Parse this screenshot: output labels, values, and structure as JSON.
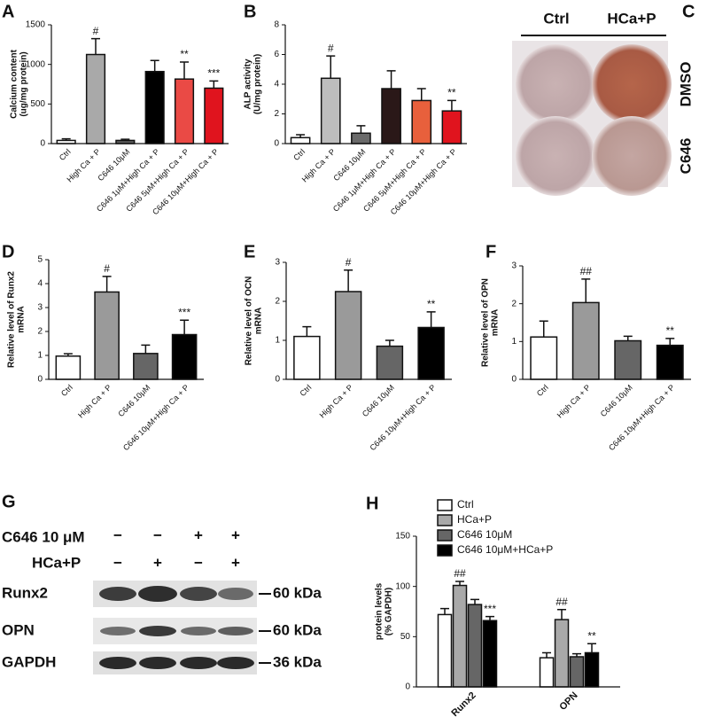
{
  "chart_data": [
    {
      "panel": "A",
      "type": "bar",
      "ylabel": [
        "Calcium content",
        "(ug/mg protein)"
      ],
      "categories": [
        "Ctrl",
        "High Ca + P",
        "C646 10μM",
        "C646 1μM+High Ca + P",
        "C646 5μM+High Ca + P",
        "C646 10μM+High Ca + P"
      ],
      "values": [
        40,
        1125,
        40,
        910,
        815,
        700
      ],
      "errors": [
        20,
        200,
        15,
        140,
        215,
        90
      ],
      "annotations": [
        null,
        "#",
        null,
        null,
        "**",
        "***"
      ],
      "colors": [
        "#ffffff",
        "#a9a9a9",
        "#5c5c5c",
        "#000000",
        "#ea4a45",
        "#e0141e"
      ],
      "ylim": [
        0,
        1500
      ],
      "yticks": [
        0,
        500,
        1000,
        1500
      ]
    },
    {
      "panel": "B",
      "type": "bar",
      "ylabel": [
        "ALP activity",
        "(U/mg protein)"
      ],
      "categories": [
        "Ctrl",
        "High Ca + P",
        "C646 10μM",
        "C646 1μM+High Ca + P",
        "C646 5μM+High Ca + P",
        "C646 10μM+High Ca + P"
      ],
      "values": [
        0.4,
        4.4,
        0.7,
        3.7,
        2.9,
        2.2
      ],
      "errors": [
        0.2,
        1.5,
        0.5,
        1.2,
        0.8,
        0.7
      ],
      "annotations": [
        null,
        "#",
        null,
        null,
        null,
        "**"
      ],
      "colors": [
        "#ffffff",
        "#bdbdbd",
        "#6a6a6a",
        "#2a1818",
        "#e8603c",
        "#e0141e"
      ],
      "ylim": [
        0,
        8
      ],
      "yticks": [
        0,
        2,
        4,
        6,
        8
      ]
    },
    {
      "panel": "D",
      "type": "bar",
      "ylabel": [
        "Relative level of Runx2",
        "mRNA"
      ],
      "categories": [
        "Ctrl",
        "High Ca + P",
        "C646 10μM",
        "C646 10μM+High Ca + P"
      ],
      "values": [
        0.97,
        3.65,
        1.08,
        1.87
      ],
      "errors": [
        0.1,
        0.65,
        0.35,
        0.6
      ],
      "annotations": [
        null,
        "#",
        null,
        "***"
      ],
      "colors": [
        "#ffffff",
        "#9a9a9a",
        "#666666",
        "#000000"
      ],
      "ylim": [
        0,
        5
      ],
      "yticks": [
        0,
        1,
        2,
        3,
        4,
        5
      ]
    },
    {
      "panel": "E",
      "type": "bar",
      "ylabel": [
        "Relative level of OCN",
        "mRNA"
      ],
      "categories": [
        "Ctrl",
        "High Ca + P",
        "C646 10μM",
        "C646 10μM+High Ca + P"
      ],
      "values": [
        1.1,
        2.25,
        0.85,
        1.33
      ],
      "errors": [
        0.25,
        0.55,
        0.15,
        0.4
      ],
      "annotations": [
        null,
        "#",
        null,
        "**"
      ],
      "colors": [
        "#ffffff",
        "#9a9a9a",
        "#666666",
        "#000000"
      ],
      "ylim": [
        0,
        3
      ],
      "yticks": [
        0,
        1,
        2,
        3
      ]
    },
    {
      "panel": "F",
      "type": "bar",
      "ylabel": [
        "Relative level of OPN",
        "mRNA"
      ],
      "categories": [
        "Ctrl",
        "High Ca + P",
        "C646 10μM",
        "C646 10μM+High Ca + P"
      ],
      "values": [
        1.12,
        2.03,
        1.02,
        0.9
      ],
      "errors": [
        0.42,
        0.62,
        0.12,
        0.18
      ],
      "annotations": [
        null,
        "##",
        null,
        "**"
      ],
      "colors": [
        "#ffffff",
        "#9a9a9a",
        "#666666",
        "#000000"
      ],
      "ylim": [
        0,
        3
      ],
      "yticks": [
        0,
        1,
        2,
        3
      ]
    },
    {
      "panel": "H",
      "type": "bar",
      "ylabel": [
        "protein levels",
        "(% GAPDH)"
      ],
      "categories": [
        "Runx2",
        "OPN"
      ],
      "series": [
        {
          "name": "Ctrl",
          "color": "#ffffff",
          "values": [
            72,
            29
          ],
          "errors": [
            6,
            5
          ],
          "annotations": [
            null,
            null
          ]
        },
        {
          "name": "HCa+P",
          "color": "#a9a9a9",
          "values": [
            101,
            67
          ],
          "errors": [
            4,
            10
          ],
          "annotations": [
            "##",
            "##"
          ]
        },
        {
          "name": "C646 10μM",
          "color": "#666666",
          "values": [
            82,
            30
          ],
          "errors": [
            5,
            3
          ],
          "annotations": [
            null,
            null
          ]
        },
        {
          "name": "C646 10μM+HCa+P",
          "color": "#000000",
          "values": [
            66,
            34
          ],
          "errors": [
            4,
            9
          ],
          "annotations": [
            "***",
            "**"
          ]
        }
      ],
      "ylim": [
        0,
        150
      ],
      "yticks": [
        0,
        50,
        100,
        150
      ],
      "legend": "top-left"
    }
  ],
  "photo": {
    "panel": "C",
    "columns": [
      "Ctrl",
      "HCa+P"
    ],
    "rows": [
      "DMSO",
      "C646"
    ]
  },
  "blot": {
    "panel": "G",
    "conditions": [
      {
        "label": "C646 10 μM",
        "signs": [
          "−",
          "−",
          "+",
          "+"
        ]
      },
      {
        "label": "HCa+P",
        "signs": [
          "−",
          "+",
          "−",
          "+"
        ]
      }
    ],
    "bands": [
      {
        "label": "Runx2",
        "size": "60 kDa"
      },
      {
        "label": "OPN",
        "size": "60 kDa"
      },
      {
        "label": "GAPDH",
        "size": "36 kDa"
      }
    ]
  }
}
